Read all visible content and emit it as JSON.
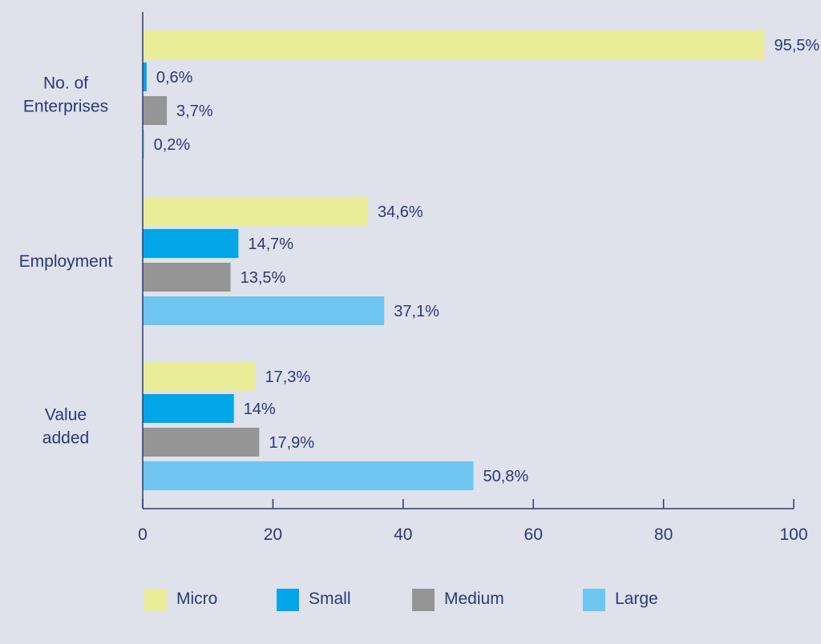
{
  "colors": {
    "background": "#dfe1eb",
    "text": "#2a3a78",
    "axis": "#2a3a78"
  },
  "chart_data": {
    "type": "bar",
    "orientation": "horizontal",
    "title": "",
    "xlabel": "",
    "ylabel": "",
    "xlim": [
      0,
      100
    ],
    "x_ticks": [
      0,
      20,
      40,
      60,
      80,
      100
    ],
    "grid": false,
    "legend_position": "bottom",
    "categories": [
      [
        "No. of",
        "Enterprises"
      ],
      [
        "Employment"
      ],
      [
        "Value",
        "added"
      ]
    ],
    "series": [
      {
        "name": "Micro",
        "color": "#e9ed98",
        "values": [
          95.5,
          34.6,
          17.3
        ],
        "labels": [
          "95,5%",
          "34,6%",
          "17,3%"
        ]
      },
      {
        "name": "Small",
        "color": "#00a6e7",
        "values": [
          0.6,
          14.7,
          14.0
        ],
        "labels": [
          "0,6%",
          "14,7%",
          "14%"
        ]
      },
      {
        "name": "Medium",
        "color": "#959595",
        "values": [
          3.7,
          13.5,
          17.9
        ],
        "labels": [
          "3,7%",
          "13,5%",
          "17,9%"
        ]
      },
      {
        "name": "Large",
        "color": "#6ec6f0",
        "values": [
          0.2,
          37.1,
          50.8
        ],
        "labels": [
          "0,2%",
          "37,1%",
          "50,8%"
        ]
      }
    ]
  }
}
